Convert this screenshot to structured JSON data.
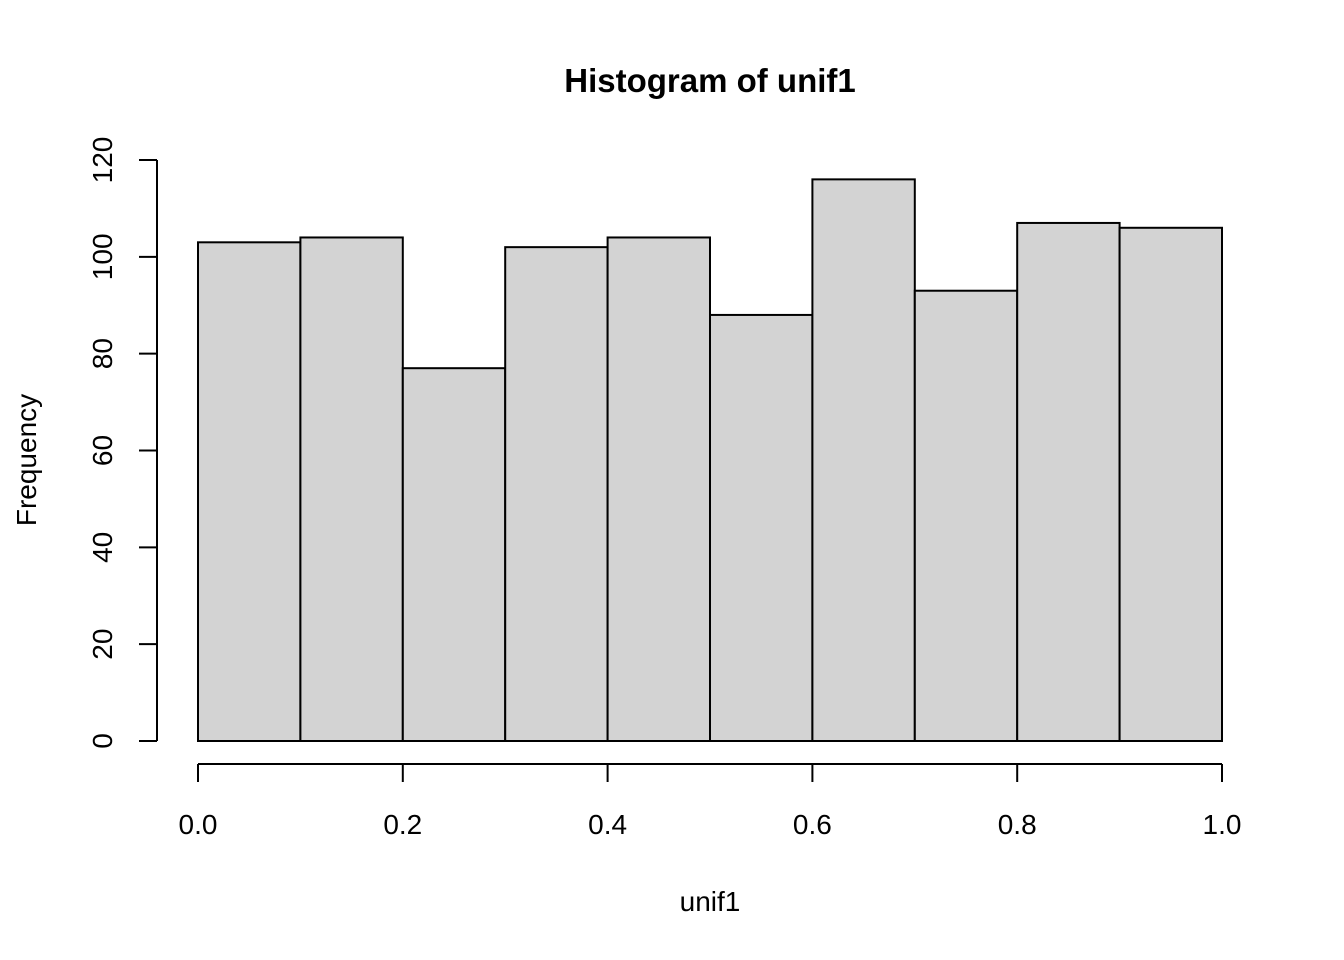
{
  "chart_data": {
    "type": "bar",
    "title": "Histogram of unif1",
    "xlabel": "unif1",
    "ylabel": "Frequency",
    "bin_edges": [
      0.0,
      0.1,
      0.2,
      0.3,
      0.4,
      0.5,
      0.6,
      0.7,
      0.8,
      0.9,
      1.0
    ],
    "values": [
      103,
      104,
      77,
      102,
      104,
      88,
      116,
      93,
      107,
      106
    ],
    "xlim": [
      0.0,
      1.0
    ],
    "ylim": [
      0,
      120
    ],
    "x_ticks": [
      0.0,
      0.2,
      0.4,
      0.6,
      0.8,
      1.0
    ],
    "x_tick_labels": [
      "0.0",
      "0.2",
      "0.4",
      "0.6",
      "0.8",
      "1.0"
    ],
    "y_ticks": [
      0,
      20,
      40,
      60,
      80,
      100,
      120
    ],
    "y_tick_labels": [
      "0",
      "20",
      "40",
      "60",
      "80",
      "100",
      "120"
    ],
    "grid": false,
    "bar_color": "#d3d3d3",
    "edge_color": "#000000"
  }
}
